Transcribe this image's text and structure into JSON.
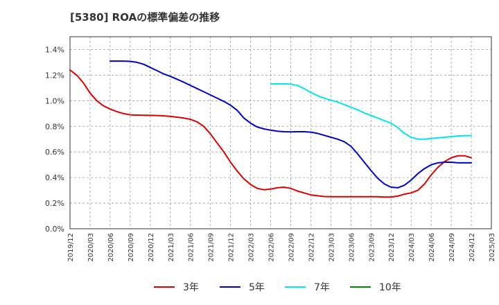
{
  "chart_data": {
    "type": "line",
    "title": "[5380]  ROAの標準偏差の推移",
    "xlabel": "",
    "ylabel": "",
    "ylim": [
      0,
      1.5
    ],
    "yticks": [
      {
        "value": 0.0,
        "label": "0.0%"
      },
      {
        "value": 0.2,
        "label": "0.2%"
      },
      {
        "value": 0.4,
        "label": "0.4%"
      },
      {
        "value": 0.6,
        "label": "0.6%"
      },
      {
        "value": 0.8,
        "label": "0.8%"
      },
      {
        "value": 1.0,
        "label": "1.0%"
      },
      {
        "value": 1.2,
        "label": "1.2%"
      },
      {
        "value": 1.4,
        "label": "1.4%"
      }
    ],
    "xlim": [
      "2019/12",
      "2025/03"
    ],
    "xticks": [
      "2019/12",
      "2020/03",
      "2020/06",
      "2020/09",
      "2020/12",
      "2021/03",
      "2021/06",
      "2021/09",
      "2021/12",
      "2022/03",
      "2022/06",
      "2022/09",
      "2022/12",
      "2023/03",
      "2023/06",
      "2023/09",
      "2023/12",
      "2024/03",
      "2024/06",
      "2024/09",
      "2024/12",
      "2025/03"
    ],
    "grid": true,
    "legend_position": "bottom",
    "series": [
      {
        "name": "3年",
        "color": "#dd0000",
        "x": [
          "2019/12",
          "2020/01",
          "2020/02",
          "2020/03",
          "2020/04",
          "2020/05",
          "2020/06",
          "2020/07",
          "2020/08",
          "2020/09",
          "2020/10",
          "2020/11",
          "2020/12",
          "2021/01",
          "2021/02",
          "2021/03",
          "2021/04",
          "2021/05",
          "2021/06",
          "2021/07",
          "2021/08",
          "2021/09",
          "2021/10",
          "2021/11",
          "2021/12",
          "2022/01",
          "2022/02",
          "2022/03",
          "2022/04",
          "2022/05",
          "2022/06",
          "2022/07",
          "2022/08",
          "2022/09",
          "2022/10",
          "2022/11",
          "2022/12",
          "2023/01",
          "2023/02",
          "2023/03",
          "2023/04",
          "2023/05",
          "2023/06",
          "2023/07",
          "2023/08",
          "2023/09",
          "2023/10",
          "2023/11",
          "2023/12",
          "2024/01",
          "2024/02",
          "2024/03",
          "2024/04",
          "2024/05",
          "2024/06",
          "2024/07",
          "2024/08",
          "2024/09",
          "2024/10",
          "2024/11",
          "2024/12"
        ],
        "values": [
          1.24,
          1.2,
          1.14,
          1.06,
          1.0,
          0.96,
          0.935,
          0.915,
          0.9,
          0.89,
          0.888,
          0.887,
          0.886,
          0.885,
          0.882,
          0.878,
          0.872,
          0.865,
          0.855,
          0.835,
          0.8,
          0.74,
          0.67,
          0.6,
          0.52,
          0.45,
          0.39,
          0.345,
          0.315,
          0.305,
          0.31,
          0.32,
          0.325,
          0.315,
          0.295,
          0.28,
          0.265,
          0.258,
          0.252,
          0.25,
          0.25,
          0.25,
          0.25,
          0.25,
          0.25,
          0.25,
          0.25,
          0.248,
          0.248,
          0.255,
          0.27,
          0.28,
          0.3,
          0.35,
          0.42,
          0.48,
          0.525,
          0.555,
          0.57,
          0.57,
          0.555
        ]
      },
      {
        "name": "5年",
        "color": "#0000cc",
        "x": [
          "2020/06",
          "2020/07",
          "2020/08",
          "2020/09",
          "2020/10",
          "2020/11",
          "2020/12",
          "2021/01",
          "2021/02",
          "2021/03",
          "2021/04",
          "2021/05",
          "2021/06",
          "2021/07",
          "2021/08",
          "2021/09",
          "2021/10",
          "2021/11",
          "2021/12",
          "2022/01",
          "2022/02",
          "2022/03",
          "2022/04",
          "2022/05",
          "2022/06",
          "2022/07",
          "2022/08",
          "2022/09",
          "2022/10",
          "2022/11",
          "2022/12",
          "2023/01",
          "2023/02",
          "2023/03",
          "2023/04",
          "2023/05",
          "2023/06",
          "2023/07",
          "2023/08",
          "2023/09",
          "2023/10",
          "2023/11",
          "2023/12",
          "2024/01",
          "2024/02",
          "2024/03",
          "2024/04",
          "2024/05",
          "2024/06",
          "2024/07",
          "2024/08",
          "2024/09",
          "2024/10",
          "2024/11",
          "2024/12"
        ],
        "values": [
          1.31,
          1.31,
          1.31,
          1.308,
          1.3,
          1.285,
          1.26,
          1.235,
          1.21,
          1.19,
          1.168,
          1.145,
          1.12,
          1.095,
          1.07,
          1.045,
          1.02,
          0.995,
          0.965,
          0.925,
          0.865,
          0.825,
          0.795,
          0.78,
          0.77,
          0.762,
          0.758,
          0.757,
          0.758,
          0.758,
          0.755,
          0.745,
          0.73,
          0.715,
          0.7,
          0.68,
          0.645,
          0.585,
          0.52,
          0.455,
          0.395,
          0.35,
          0.325,
          0.32,
          0.34,
          0.38,
          0.43,
          0.47,
          0.5,
          0.515,
          0.52,
          0.52,
          0.515,
          0.515,
          0.515
        ]
      },
      {
        "name": "7年",
        "color": "#00e5ee",
        "x": [
          "2022/06",
          "2022/07",
          "2022/08",
          "2022/09",
          "2022/10",
          "2022/11",
          "2022/12",
          "2023/01",
          "2023/02",
          "2023/03",
          "2023/04",
          "2023/05",
          "2023/06",
          "2023/07",
          "2023/08",
          "2023/09",
          "2023/10",
          "2023/11",
          "2023/12",
          "2024/01",
          "2024/02",
          "2024/03",
          "2024/04",
          "2024/05",
          "2024/06",
          "2024/07",
          "2024/08",
          "2024/09",
          "2024/10",
          "2024/11",
          "2024/12"
        ],
        "values": [
          1.13,
          1.132,
          1.132,
          1.13,
          1.12,
          1.095,
          1.065,
          1.04,
          1.02,
          1.005,
          0.99,
          0.97,
          0.95,
          0.93,
          0.905,
          0.885,
          0.865,
          0.845,
          0.825,
          0.79,
          0.745,
          0.715,
          0.7,
          0.7,
          0.705,
          0.71,
          0.715,
          0.72,
          0.725,
          0.728,
          0.728
        ]
      },
      {
        "name": "10年",
        "color": "#008800",
        "x": [],
        "values": []
      }
    ]
  }
}
